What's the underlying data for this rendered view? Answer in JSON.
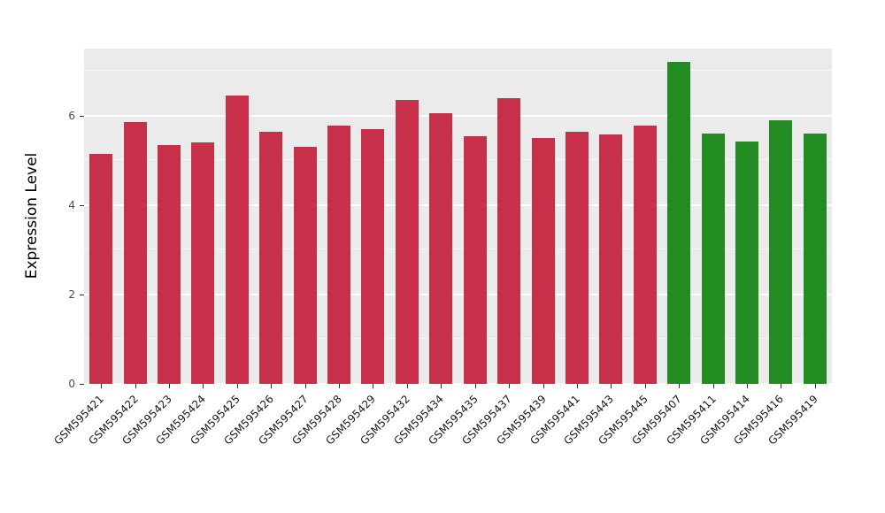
{
  "chart_data": {
    "type": "bar",
    "title": "",
    "xlabel": "",
    "ylabel": "Expression Level",
    "ylim": [
      0,
      7.5
    ],
    "ytick_values": [
      0,
      2,
      4,
      6
    ],
    "minor_gridlines": [
      1,
      3,
      5,
      7
    ],
    "grid": "on",
    "legend": "none",
    "panel_background": "#EBEBEB",
    "categories": [
      "GSM595421",
      "GSM595422",
      "GSM595423",
      "GSM595424",
      "GSM595425",
      "GSM595426",
      "GSM595427",
      "GSM595428",
      "GSM595429",
      "GSM595432",
      "GSM595434",
      "GSM595435",
      "GSM595437",
      "GSM595439",
      "GSM595441",
      "GSM595443",
      "GSM595445",
      "GSM595407",
      "GSM595411",
      "GSM595414",
      "GSM595416",
      "GSM595419"
    ],
    "values": [
      5.15,
      5.85,
      5.35,
      5.4,
      6.45,
      5.65,
      5.3,
      5.78,
      5.7,
      6.35,
      6.05,
      5.55,
      6.4,
      5.5,
      5.65,
      5.58,
      5.78,
      7.2,
      5.6,
      5.43,
      5.9,
      5.6
    ],
    "groups": [
      "red",
      "red",
      "red",
      "red",
      "red",
      "red",
      "red",
      "red",
      "red",
      "red",
      "red",
      "red",
      "red",
      "red",
      "red",
      "red",
      "red",
      "green",
      "green",
      "green",
      "green",
      "green"
    ],
    "colors": {
      "red": "#C8304A",
      "green": "#228B22"
    }
  }
}
